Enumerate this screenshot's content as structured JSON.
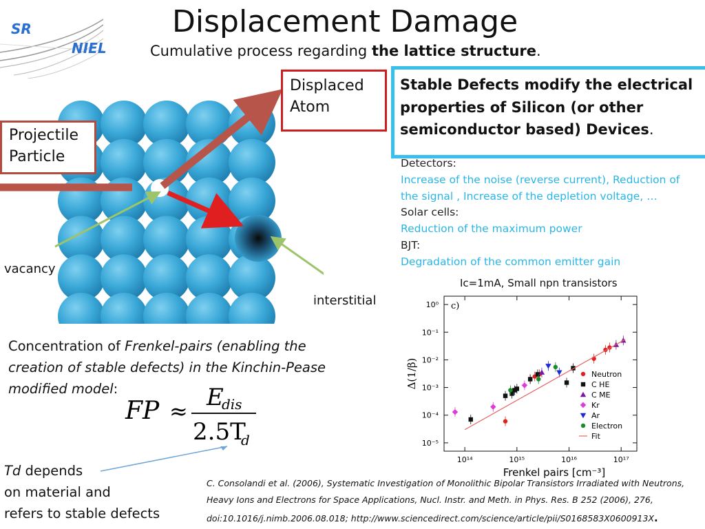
{
  "slide": {
    "title": "Displacement Damage",
    "subtitle_pre": "Cumulative process regarding ",
    "subtitle_bold": "the lattice structure",
    "subtitle_post": ".",
    "logo": {
      "top": "SR",
      "bottom": "NIEL"
    }
  },
  "diagram": {
    "projectile_label_1": "Projectile",
    "projectile_label_2": "Particle",
    "displaced_label_1": "Displaced",
    "displaced_label_2": "Atom",
    "vacancy_label": "vacancy",
    "interstitial_label": "interstitial",
    "colors": {
      "atom": "#3aa8d8",
      "arrow_red": "#e02020",
      "arrow_brown": "#b8554a",
      "arrow_green": "#9dc46a"
    }
  },
  "stable_box": {
    "text_1": "Stable Defects modify the electrical",
    "text_2": "properties of Silicon (or other",
    "text_3": "semiconductor based) Devices",
    "text_end": "."
  },
  "effects": {
    "detectors_title": "Detectors:",
    "detectors_1": "Increase of the noise  (reverse current), Reduction of",
    "detectors_2": "the signal , Increase of the depletion voltage, …",
    "solar_title": "Solar cells:",
    "solar_text": "Reduction of the maximum power",
    "bjt_title": "BJT:",
    "bjt_text": "Degradation of the common emitter gain"
  },
  "concentration": {
    "line1_pre": "Concentration of ",
    "line1_italic": "Frenkel-pairs (enabling the",
    "line2_italic": "creation of stable defects) in the Kinchin-Pease",
    "line3_italic": "modified model",
    "line3_post": ":"
  },
  "formula": {
    "lhs": "FP",
    "approx": "≈",
    "num": "E",
    "num_sub": "dis",
    "den": "2.5T",
    "den_sub": "d"
  },
  "td_note": {
    "italic": "Td",
    "line1_post": " depends",
    "line2": "on material and",
    "line3": "refers to stable defects"
  },
  "citation": {
    "line1": "C. Consolandi et al. (2006),  Systematic Investigation of Monolithic Bipolar Transistors Irradiated with Neutrons,",
    "line2": "Heavy Ions and Electrons for Space Applications, Nucl. Instr. and Meth. in Phys. Res. B 252  (2006),  276,",
    "line3": "doi:10.1016/j.nimb.2006.08.018;  http://www.sciencedirect.com/science/article/pii/S0168583X0600913X",
    "line3_end": "."
  },
  "chart_data": {
    "type": "scatter",
    "title": "Ic=1mA, Small npn transistors",
    "panel_label": "c)",
    "xlabel": "Frenkel pairs [cm⁻³]",
    "ylabel": "Δ(1/β)",
    "x_scale": "log",
    "y_scale": "log",
    "xlim": [
      40000000000000.0,
      2e+17
    ],
    "ylim": [
      5e-06,
      2
    ],
    "x_ticks": [
      "10¹⁴",
      "10¹⁵",
      "10¹⁶",
      "10¹⁷"
    ],
    "y_ticks": [
      "10⁰",
      "10⁻¹",
      "10⁻²",
      "10⁻³",
      "10⁻⁴",
      "10⁻⁵"
    ],
    "legend_position": "right",
    "series": [
      {
        "name": "Neutron",
        "marker": "circle",
        "color": "#e22020",
        "x": [
          600000000000000.0,
          1800000000000000.0,
          2200000000000000.0,
          2700000000000000.0,
          3e+16,
          5e+16,
          6e+16
        ],
        "y": [
          6e-05,
          0.002,
          0.0025,
          0.003,
          0.011,
          0.023,
          0.028
        ]
      },
      {
        "name": "C HE",
        "marker": "square",
        "color": "#111111",
        "x": [
          130000000000000.0,
          600000000000000.0,
          800000000000000.0,
          900000000000000.0,
          1000000000000000.0,
          1800000000000000.0,
          2500000000000000.0,
          9000000000000000.0,
          1.2e+16
        ],
        "y": [
          7e-05,
          0.0005,
          0.0006,
          0.0008,
          0.0009,
          0.002,
          0.003,
          0.0015,
          0.005
        ]
      },
      {
        "name": "C ME",
        "marker": "triangle-up",
        "color": "#7a1a9a",
        "x": [
          3000000000000000.0,
          8e+16,
          1.1e+17
        ],
        "y": [
          0.0035,
          0.035,
          0.05
        ]
      },
      {
        "name": "Kr",
        "marker": "diamond",
        "color": "#e03ad8",
        "x": [
          65000000000000.0,
          350000000000000.0,
          1400000000000000.0
        ],
        "y": [
          0.00013,
          0.0002,
          0.0012
        ]
      },
      {
        "name": "Ar",
        "marker": "triangle-down",
        "color": "#1a2ad8",
        "x": [
          4000000000000000.0,
          6500000000000000.0
        ],
        "y": [
          0.006,
          0.0035
        ]
      },
      {
        "name": "Electron",
        "marker": "circle",
        "color": "#1a8a2a",
        "x": [
          750000000000000.0,
          2600000000000000.0,
          5500000000000000.0
        ],
        "y": [
          0.0008,
          0.002,
          0.0055
        ]
      },
      {
        "name": "Fit",
        "marker": "line",
        "color": "#e86060",
        "x": [
          100000000000000.0,
          1.2e+17
        ],
        "y": [
          3e-05,
          0.055
        ]
      }
    ]
  }
}
